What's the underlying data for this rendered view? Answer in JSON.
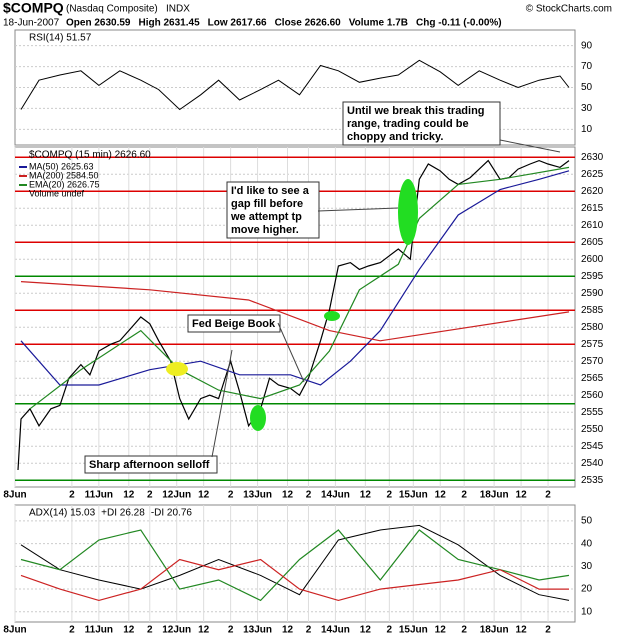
{
  "header": {
    "symbol": "$COMPQ",
    "name": "(Nasdaq Composite)",
    "exchange": "INDX",
    "copyright": "© StockCharts.com",
    "date": "18-Jun-2007",
    "stats": [
      "Open 2630.59",
      "High 2631.45",
      "Low 2617.66",
      "Close 2626.60",
      "Volume 1.7B",
      "Chg -0.11 (-0.00%)"
    ]
  },
  "chart_data": [
    {
      "type": "line",
      "title": "RSI(14) 51.57",
      "xlim": [
        0,
        187
      ],
      "ylim": [
        -5,
        105
      ],
      "yticks": [
        10,
        30,
        50,
        70,
        90
      ],
      "series": [
        {
          "name": "RSI(14)",
          "color": "#000000",
          "x": [
            2,
            8,
            15,
            22,
            28,
            35,
            42,
            48,
            55,
            62,
            68,
            75,
            82,
            88,
            95,
            102,
            108,
            115,
            122,
            128,
            135,
            142,
            148,
            155,
            162,
            168,
            175,
            182,
            185
          ],
          "values": [
            29,
            57,
            62,
            66,
            52,
            66,
            57,
            48,
            29,
            43,
            57,
            38,
            48,
            57,
            43,
            71,
            66,
            55,
            59,
            62,
            76,
            65,
            52,
            66,
            57,
            50,
            57,
            61,
            50
          ]
        }
      ]
    },
    {
      "type": "line",
      "title": "$COMPQ (15 min) 2626.60",
      "xlim": [
        0,
        187
      ],
      "ylim": [
        2533,
        2633
      ],
      "yticks": [
        2535,
        2540,
        2545,
        2550,
        2555,
        2560,
        2565,
        2570,
        2575,
        2580,
        2585,
        2590,
        2595,
        2600,
        2605,
        2610,
        2615,
        2620,
        2625,
        2630
      ],
      "xticks": [
        {
          "value": 0,
          "label": "8Jun"
        },
        {
          "value": 19,
          "label": "2"
        },
        {
          "value": 28,
          "label": "11Jun"
        },
        {
          "value": 38,
          "label": "12"
        },
        {
          "value": 45,
          "label": "2"
        },
        {
          "value": 54,
          "label": "12Jun"
        },
        {
          "value": 63,
          "label": "12"
        },
        {
          "value": 72,
          "label": "2"
        },
        {
          "value": 81,
          "label": "13Jun"
        },
        {
          "value": 91,
          "label": "12"
        },
        {
          "value": 98,
          "label": "2"
        },
        {
          "value": 107,
          "label": "14Jun"
        },
        {
          "value": 117,
          "label": "12"
        },
        {
          "value": 125,
          "label": "2"
        },
        {
          "value": 133,
          "label": "15Jun"
        },
        {
          "value": 142,
          "label": "12"
        },
        {
          "value": 150,
          "label": "2"
        },
        {
          "value": 160,
          "label": "18Jun"
        },
        {
          "value": 169,
          "label": "12"
        },
        {
          "value": 178,
          "label": "2"
        }
      ],
      "hlines": [
        {
          "value": 2630,
          "color": "#dd0000"
        },
        {
          "value": 2620,
          "color": "#dd0000"
        },
        {
          "value": 2605,
          "color": "#dd0000"
        },
        {
          "value": 2595,
          "color": "#008800"
        },
        {
          "value": 2585,
          "color": "#dd0000"
        },
        {
          "value": 2575,
          "color": "#dd0000"
        },
        {
          "value": 2557.5,
          "color": "#008800"
        },
        {
          "value": 2535,
          "color": "#008800"
        }
      ],
      "series": [
        {
          "name": "$COMPQ (15 min) 2626.60",
          "color": "#000000",
          "x": [
            1,
            2,
            5,
            8,
            12,
            15,
            18,
            22,
            25,
            28,
            32,
            35,
            38,
            42,
            45,
            48,
            52,
            55,
            58,
            62,
            65,
            68,
            72,
            75,
            78,
            82,
            85,
            88,
            92,
            95,
            98,
            102,
            105,
            108,
            112,
            115,
            118,
            122,
            125,
            128,
            132,
            135,
            138,
            142,
            145,
            148,
            152,
            155,
            158,
            162,
            165,
            168,
            172,
            175,
            178,
            182,
            185
          ],
          "values": [
            2538,
            2553,
            2556,
            2551,
            2556,
            2557,
            2565,
            2569,
            2566,
            2573,
            2575,
            2576,
            2579,
            2583,
            2581,
            2576,
            2570,
            2559,
            2553,
            2559,
            2560,
            2559,
            2570,
            2561,
            2551,
            2556,
            2565,
            2563,
            2562,
            2560,
            2565,
            2576,
            2585,
            2598,
            2599,
            2597,
            2598,
            2599,
            2601,
            2603,
            2600,
            2623.5,
            2628,
            2626,
            2623.5,
            2622,
            2624,
            2626.5,
            2629,
            2623.5,
            2624,
            2626.5,
            2628,
            2629,
            2628,
            2627,
            2629
          ]
        },
        {
          "name": "MA(50) 2625.63",
          "color": "#1a1a99",
          "x": [
            2,
            15,
            28,
            45,
            62,
            75,
            92,
            102,
            112,
            122,
            135,
            148,
            162,
            175,
            185
          ],
          "values": [
            2576,
            2563,
            2563,
            2567.5,
            2570,
            2566,
            2566,
            2563,
            2570,
            2579,
            2597,
            2613,
            2620.5,
            2623.5,
            2626
          ]
        },
        {
          "name": "MA(200) 2584.50",
          "color": "#cc2222",
          "x": [
            2,
            45,
            78,
            105,
            122,
            185
          ],
          "values": [
            2593.4,
            2591,
            2588,
            2579,
            2576,
            2584.5
          ]
        },
        {
          "name": "EMA(20) 2626.75",
          "color": "#228822",
          "x": [
            5,
            22,
            42,
            55,
            68,
            82,
            95,
            105,
            115,
            128,
            135,
            148,
            162,
            185
          ],
          "values": [
            2556,
            2567.5,
            2579,
            2567.5,
            2561.5,
            2559,
            2563,
            2573,
            2591,
            2598.5,
            2612,
            2622,
            2623.5,
            2627
          ]
        }
      ],
      "notes": [
        "Volume undef"
      ],
      "annotations": [
        [
          "Until we break this trading",
          "range, trading could be",
          "choppy and tricky."
        ],
        [
          "I'd like to see a",
          "gap fill before",
          "we attempt tp",
          "move higher."
        ],
        [
          "Fed Beige Book"
        ],
        [
          "Sharp afternoon selloff"
        ]
      ]
    },
    {
      "type": "line",
      "title": "ADX(14) 15.03",
      "xlim": [
        0,
        187
      ],
      "ylim": [
        5.5,
        57
      ],
      "yticks": [
        10,
        20,
        30,
        40,
        50
      ],
      "xticks": [
        {
          "value": 0,
          "label": "8Jun"
        },
        {
          "value": 19,
          "label": "2"
        },
        {
          "value": 28,
          "label": "11Jun"
        },
        {
          "value": 38,
          "label": "12"
        },
        {
          "value": 45,
          "label": "2"
        },
        {
          "value": 54,
          "label": "12Jun"
        },
        {
          "value": 63,
          "label": "12"
        },
        {
          "value": 72,
          "label": "2"
        },
        {
          "value": 81,
          "label": "13Jun"
        },
        {
          "value": 91,
          "label": "12"
        },
        {
          "value": 98,
          "label": "2"
        },
        {
          "value": 107,
          "label": "14Jun"
        },
        {
          "value": 117,
          "label": "12"
        },
        {
          "value": 125,
          "label": "2"
        },
        {
          "value": 133,
          "label": "15Jun"
        },
        {
          "value": 142,
          "label": "12"
        },
        {
          "value": 150,
          "label": "2"
        },
        {
          "value": 160,
          "label": "18Jun"
        },
        {
          "value": 169,
          "label": "12"
        },
        {
          "value": 178,
          "label": "2"
        }
      ],
      "series": [
        {
          "name": "ADX(14) 15.03",
          "color": "#000000",
          "x": [
            2,
            15,
            28,
            42,
            55,
            68,
            82,
            95,
            108,
            122,
            135,
            148,
            162,
            175,
            185
          ],
          "values": [
            39.5,
            28.5,
            24,
            20,
            26,
            33,
            26,
            17.5,
            41.6,
            46,
            48,
            39.5,
            26,
            17.5,
            15
          ]
        },
        {
          "name": "+DI 26.28",
          "color": "#228822",
          "x": [
            2,
            15,
            28,
            42,
            55,
            68,
            82,
            95,
            108,
            122,
            135,
            148,
            162,
            175,
            185
          ],
          "values": [
            33,
            28.5,
            41.6,
            46,
            20,
            24,
            15,
            33,
            46,
            24,
            46,
            33,
            28.5,
            24,
            26
          ]
        },
        {
          "name": "-DI 20.76",
          "color": "#cc2222",
          "x": [
            2,
            15,
            28,
            42,
            55,
            68,
            82,
            95,
            108,
            122,
            135,
            148,
            162,
            175,
            185
          ],
          "values": [
            26,
            20,
            15,
            20,
            33,
            28.5,
            33,
            20,
            15,
            20,
            22,
            24,
            28.5,
            20,
            20
          ]
        }
      ]
    }
  ]
}
